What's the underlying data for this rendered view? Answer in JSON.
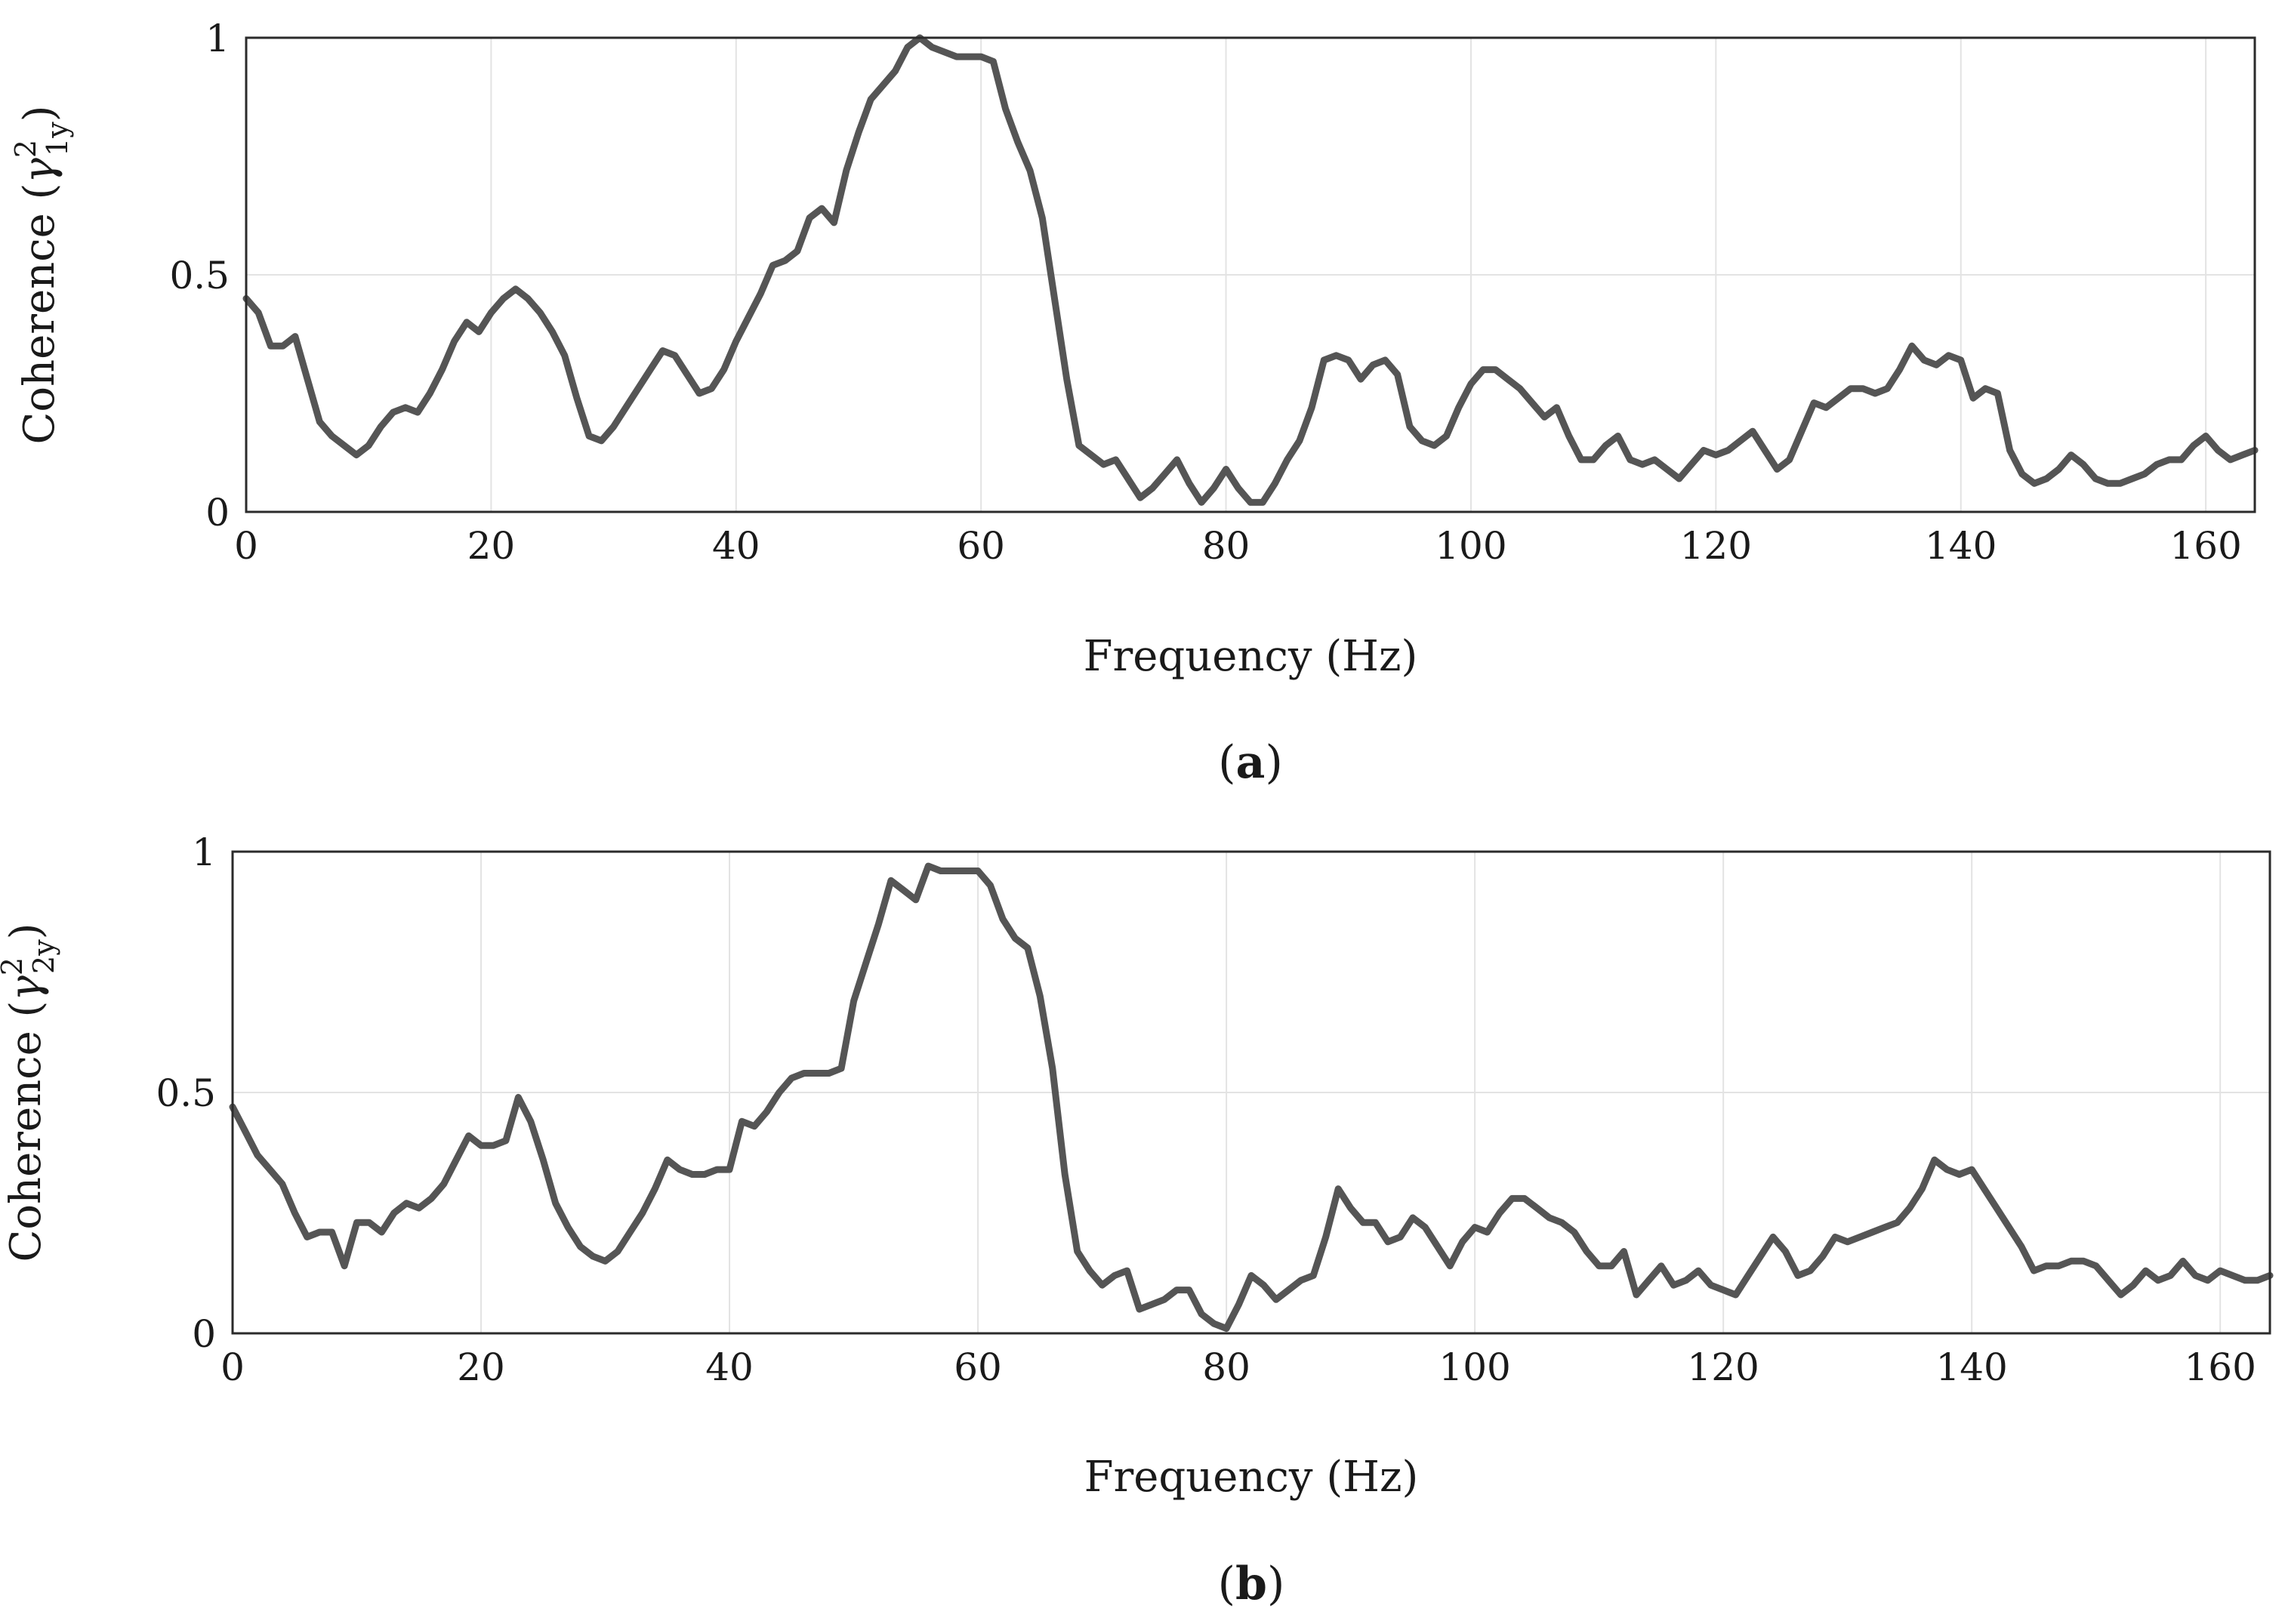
{
  "chart_data": [
    {
      "type": "line",
      "caption": "a",
      "xlabel": "Frequency (Hz)",
      "ylabel_prefix": "Coherence (",
      "ylabel_symbol": "γ",
      "ylabel_sup": "2",
      "ylabel_sub": "1y",
      "ylabel_suffix": ")",
      "xlim": [
        0,
        164
      ],
      "ylim": [
        0,
        1
      ],
      "xticks": [
        0,
        20,
        40,
        60,
        80,
        100,
        120,
        140,
        160
      ],
      "xtick_labels": [
        "0",
        "20",
        "40",
        "60",
        "80",
        "100",
        "120",
        "140",
        "160"
      ],
      "yticks": [
        0,
        0.5,
        1
      ],
      "ytick_labels": [
        "0",
        "0.5",
        "1"
      ],
      "grid": true,
      "series": [
        {
          "x": [
            0,
            1,
            2,
            3,
            4,
            5,
            6,
            7,
            8,
            9,
            10,
            11,
            12,
            13,
            14,
            15,
            16,
            17,
            18,
            19,
            20,
            21,
            22,
            23,
            24,
            25,
            26,
            27,
            28,
            29,
            30,
            31,
            32,
            33,
            34,
            35,
            36,
            37,
            38,
            39,
            40,
            41,
            42,
            43,
            44,
            45,
            46,
            47,
            48,
            49,
            50,
            51,
            52,
            53,
            54,
            55,
            56,
            57,
            58,
            59,
            60,
            61,
            62,
            63,
            64,
            65,
            66,
            67,
            68,
            69,
            70,
            71,
            72,
            73,
            74,
            75,
            76,
            77,
            78,
            79,
            80,
            81,
            82,
            83,
            84,
            85,
            86,
            87,
            88,
            89,
            90,
            91,
            92,
            93,
            94,
            95,
            96,
            97,
            98,
            99,
            100,
            101,
            102,
            103,
            104,
            105,
            106,
            107,
            108,
            109,
            110,
            111,
            112,
            113,
            114,
            115,
            116,
            117,
            118,
            119,
            120,
            121,
            122,
            123,
            124,
            125,
            126,
            127,
            128,
            129,
            130,
            131,
            132,
            133,
            134,
            135,
            136,
            137,
            138,
            139,
            140,
            141,
            142,
            143,
            144,
            145,
            146,
            147,
            148,
            149,
            150,
            151,
            152,
            153,
            154,
            155,
            156,
            157,
            158,
            159,
            160,
            161,
            162,
            163,
            164
          ],
          "values": [
            0.45,
            0.42,
            0.35,
            0.35,
            0.37,
            0.28,
            0.19,
            0.16,
            0.14,
            0.12,
            0.14,
            0.18,
            0.21,
            0.22,
            0.21,
            0.25,
            0.3,
            0.36,
            0.4,
            0.38,
            0.42,
            0.45,
            0.47,
            0.45,
            0.42,
            0.38,
            0.33,
            0.24,
            0.16,
            0.15,
            0.18,
            0.22,
            0.26,
            0.3,
            0.34,
            0.33,
            0.29,
            0.25,
            0.26,
            0.3,
            0.36,
            0.41,
            0.46,
            0.52,
            0.53,
            0.55,
            0.62,
            0.64,
            0.61,
            0.72,
            0.8,
            0.87,
            0.9,
            0.93,
            0.98,
            1.0,
            0.98,
            0.97,
            0.96,
            0.96,
            0.96,
            0.95,
            0.85,
            0.78,
            0.72,
            0.62,
            0.45,
            0.28,
            0.14,
            0.12,
            0.1,
            0.11,
            0.07,
            0.03,
            0.05,
            0.08,
            0.11,
            0.06,
            0.02,
            0.05,
            0.09,
            0.05,
            0.02,
            0.02,
            0.06,
            0.11,
            0.15,
            0.22,
            0.32,
            0.33,
            0.32,
            0.28,
            0.31,
            0.32,
            0.29,
            0.18,
            0.15,
            0.14,
            0.16,
            0.22,
            0.27,
            0.3,
            0.3,
            0.28,
            0.26,
            0.23,
            0.2,
            0.22,
            0.16,
            0.11,
            0.11,
            0.14,
            0.16,
            0.11,
            0.1,
            0.11,
            0.09,
            0.07,
            0.1,
            0.13,
            0.12,
            0.13,
            0.15,
            0.17,
            0.13,
            0.09,
            0.11,
            0.17,
            0.23,
            0.22,
            0.24,
            0.26,
            0.26,
            0.25,
            0.26,
            0.3,
            0.35,
            0.32,
            0.31,
            0.33,
            0.32,
            0.24,
            0.26,
            0.25,
            0.13,
            0.08,
            0.06,
            0.07,
            0.09,
            0.12,
            0.1,
            0.07,
            0.06,
            0.06,
            0.07,
            0.08,
            0.1,
            0.11,
            0.11,
            0.14,
            0.16,
            0.13,
            0.11,
            0.12,
            0.13
          ]
        }
      ]
    },
    {
      "type": "line",
      "caption": "b",
      "xlabel": "Frequency (Hz)",
      "ylabel_prefix": "Coherence (",
      "ylabel_symbol": "γ",
      "ylabel_sup": "2",
      "ylabel_sub": "2y",
      "ylabel_suffix": ")",
      "xlim": [
        0,
        164
      ],
      "ylim": [
        0,
        1
      ],
      "xticks": [
        0,
        20,
        40,
        60,
        80,
        100,
        120,
        140,
        160
      ],
      "xtick_labels": [
        "0",
        "20",
        "40",
        "60",
        "80",
        "100",
        "120",
        "140",
        "160"
      ],
      "yticks": [
        0,
        0.5,
        1
      ],
      "ytick_labels": [
        "0",
        "0.5",
        "1"
      ],
      "grid": true,
      "series": [
        {
          "x": [
            0,
            1,
            2,
            3,
            4,
            5,
            6,
            7,
            8,
            9,
            10,
            11,
            12,
            13,
            14,
            15,
            16,
            17,
            18,
            19,
            20,
            21,
            22,
            23,
            24,
            25,
            26,
            27,
            28,
            29,
            30,
            31,
            32,
            33,
            34,
            35,
            36,
            37,
            38,
            39,
            40,
            41,
            42,
            43,
            44,
            45,
            46,
            47,
            48,
            49,
            50,
            51,
            52,
            53,
            54,
            55,
            56,
            57,
            58,
            59,
            60,
            61,
            62,
            63,
            64,
            65,
            66,
            67,
            68,
            69,
            70,
            71,
            72,
            73,
            74,
            75,
            76,
            77,
            78,
            79,
            80,
            81,
            82,
            83,
            84,
            85,
            86,
            87,
            88,
            89,
            90,
            91,
            92,
            93,
            94,
            95,
            96,
            97,
            98,
            99,
            100,
            101,
            102,
            103,
            104,
            105,
            106,
            107,
            108,
            109,
            110,
            111,
            112,
            113,
            114,
            115,
            116,
            117,
            118,
            119,
            120,
            121,
            122,
            123,
            124,
            125,
            126,
            127,
            128,
            129,
            130,
            131,
            132,
            133,
            134,
            135,
            136,
            137,
            138,
            139,
            140,
            141,
            142,
            143,
            144,
            145,
            146,
            147,
            148,
            149,
            150,
            151,
            152,
            153,
            154,
            155,
            156,
            157,
            158,
            159,
            160,
            161,
            162,
            163,
            164
          ],
          "values": [
            0.47,
            0.42,
            0.37,
            0.34,
            0.31,
            0.25,
            0.2,
            0.21,
            0.21,
            0.14,
            0.23,
            0.23,
            0.21,
            0.25,
            0.27,
            0.26,
            0.28,
            0.31,
            0.36,
            0.41,
            0.39,
            0.39,
            0.4,
            0.49,
            0.44,
            0.36,
            0.27,
            0.22,
            0.18,
            0.16,
            0.15,
            0.17,
            0.21,
            0.25,
            0.3,
            0.36,
            0.34,
            0.33,
            0.33,
            0.34,
            0.34,
            0.44,
            0.43,
            0.46,
            0.5,
            0.53,
            0.54,
            0.54,
            0.54,
            0.55,
            0.69,
            0.77,
            0.85,
            0.94,
            0.92,
            0.9,
            0.97,
            0.96,
            0.96,
            0.96,
            0.96,
            0.93,
            0.86,
            0.82,
            0.8,
            0.7,
            0.55,
            0.33,
            0.17,
            0.13,
            0.1,
            0.12,
            0.13,
            0.05,
            0.06,
            0.07,
            0.09,
            0.09,
            0.04,
            0.02,
            0.01,
            0.06,
            0.12,
            0.1,
            0.07,
            0.09,
            0.11,
            0.12,
            0.2,
            0.3,
            0.26,
            0.23,
            0.23,
            0.19,
            0.2,
            0.24,
            0.22,
            0.18,
            0.14,
            0.19,
            0.22,
            0.21,
            0.25,
            0.28,
            0.28,
            0.26,
            0.24,
            0.23,
            0.21,
            0.17,
            0.14,
            0.14,
            0.17,
            0.08,
            0.11,
            0.14,
            0.1,
            0.11,
            0.13,
            0.1,
            0.09,
            0.08,
            0.12,
            0.16,
            0.2,
            0.17,
            0.12,
            0.13,
            0.16,
            0.2,
            0.19,
            0.2,
            0.21,
            0.22,
            0.23,
            0.26,
            0.3,
            0.36,
            0.34,
            0.33,
            0.34,
            0.3,
            0.26,
            0.22,
            0.18,
            0.13,
            0.14,
            0.14,
            0.15,
            0.15,
            0.14,
            0.11,
            0.08,
            0.1,
            0.13,
            0.11,
            0.12,
            0.15,
            0.12,
            0.11,
            0.13,
            0.12,
            0.11,
            0.11,
            0.12
          ]
        }
      ]
    }
  ]
}
